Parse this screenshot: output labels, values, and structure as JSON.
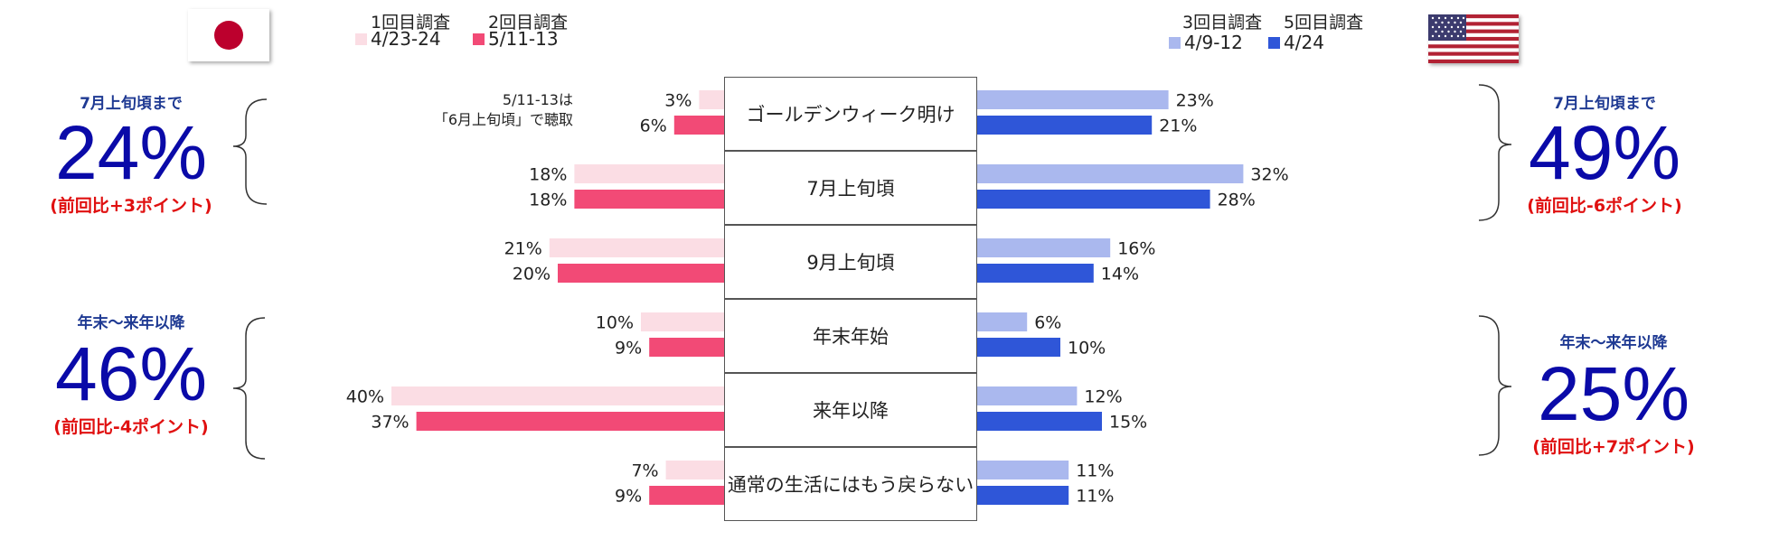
{
  "colors": {
    "jp_round1": "#fbdde4",
    "jp_round2": "#f24a76",
    "us_round3": "#aab8ee",
    "us_round5": "#2f56d8",
    "flag_red": "#bc002d",
    "summary_number": "#0a0aa8",
    "summary_delta": "#e01010",
    "summary_label": "#1f3a93"
  },
  "icons": {
    "japan_flag": "japan-flag-icon",
    "us_flag": "us-flag-icon"
  },
  "legend": {
    "japan": {
      "round1_title": "1回目調査",
      "round1_date": "4/23-24",
      "round2_title": "2回目調査",
      "round2_date": "5/11-13"
    },
    "us": {
      "round3_title": "3回目調査",
      "round3_date": "4/9-12",
      "round5_title": "5回目調査",
      "round5_date": "4/24"
    }
  },
  "note": {
    "line1": "5/11-13は",
    "line2": "「6月上旬頃」で聴取"
  },
  "summary": {
    "jp_top": {
      "label": "7月上旬頃まで",
      "value": "24%",
      "delta": "(前回比+3ポイント)"
    },
    "jp_bottom": {
      "label": "年末～来年以降",
      "value": "46%",
      "delta": "(前回比-4ポイント)"
    },
    "us_top": {
      "label": "7月上旬頃まで",
      "value": "49%",
      "delta": "(前回比-6ポイント)"
    },
    "us_bottom": {
      "label": "年末～来年以降",
      "value": "25%",
      "delta": "(前回比+7ポイント)"
    }
  },
  "chart_data": {
    "type": "bar",
    "orientation": "horizontal",
    "layout": "back-to-back",
    "categories": [
      "ゴールデンウィーク明け",
      "7月上旬頃",
      "9月上旬頃",
      "年末年始",
      "来年以降",
      "通常の生活にはもう戻らない"
    ],
    "series": [
      {
        "name": "4/23-24",
        "side": "left",
        "values": [
          3,
          18,
          21,
          10,
          40,
          7
        ],
        "labels": [
          "3%",
          "18%",
          "21%",
          "10%",
          "40%",
          "7%"
        ]
      },
      {
        "name": "5/11-13",
        "side": "left",
        "values": [
          6,
          18,
          20,
          9,
          37,
          9
        ],
        "labels": [
          "6%",
          "18%",
          "20%",
          "9%",
          "37%",
          "9%"
        ]
      },
      {
        "name": "4/9-12",
        "side": "right",
        "values": [
          23,
          32,
          16,
          6,
          12,
          11
        ],
        "labels": [
          "23%",
          "32%",
          "16%",
          "6%",
          "12%",
          "11%"
        ]
      },
      {
        "name": "4/24",
        "side": "right",
        "values": [
          21,
          28,
          14,
          10,
          15,
          11
        ],
        "labels": [
          "21%",
          "28%",
          "14%",
          "10%",
          "15%",
          "11%"
        ]
      }
    ],
    "xlim": [
      0,
      40
    ],
    "grid": false
  }
}
